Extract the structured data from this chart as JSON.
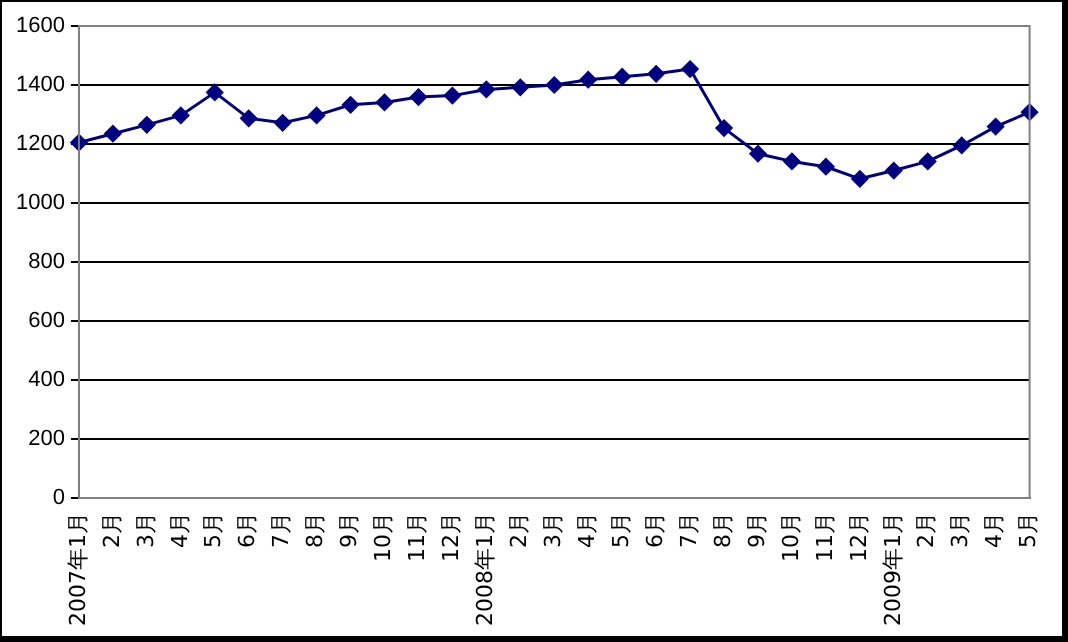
{
  "chart_data": {
    "type": "line",
    "categories": [
      "2007年1月",
      "2月",
      "3月",
      "4月",
      "5月",
      "6月",
      "7月",
      "8月",
      "9月",
      "10月",
      "11月",
      "12月",
      "2008年1月",
      "2月",
      "3月",
      "4月",
      "5月",
      "6月",
      "7月",
      "8月",
      "9月",
      "10月",
      "11月",
      "12月",
      "2009年1月",
      "2月",
      "3月",
      "4月",
      "5月"
    ],
    "series": [
      {
        "color": "#000080",
        "values": [
          1205,
          1235,
          1265,
          1297,
          1375,
          1287,
          1272,
          1297,
          1333,
          1341,
          1359,
          1364,
          1385,
          1392,
          1400,
          1418,
          1428,
          1438,
          1454,
          1254,
          1167,
          1141,
          1123,
          1082,
          1110,
          1141,
          1195,
          1259,
          1308
        ]
      }
    ],
    "ylim": [
      0,
      1600
    ],
    "yticks": [
      0,
      200,
      400,
      600,
      800,
      1000,
      1200,
      1400,
      1600
    ],
    "grid": "y",
    "legend": false,
    "marker": "diamond",
    "line_style": "solid"
  }
}
